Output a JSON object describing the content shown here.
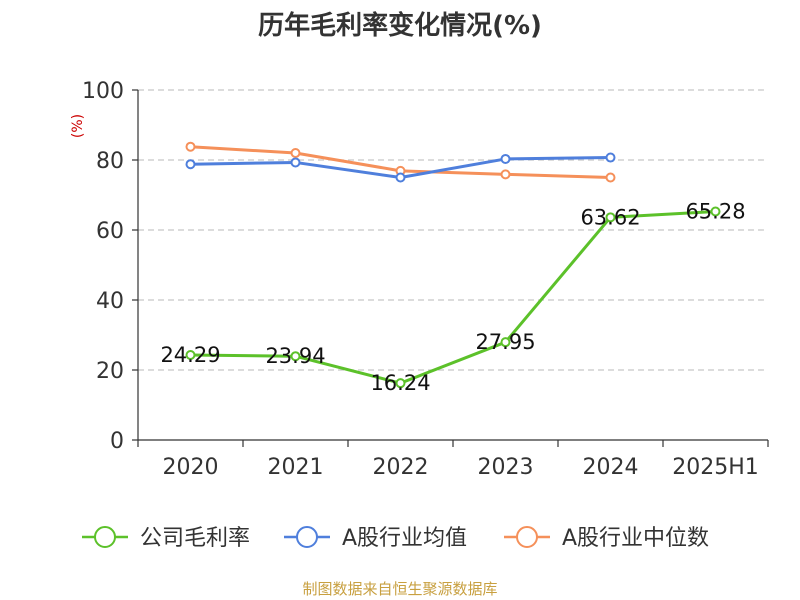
{
  "chart_data": {
    "type": "line",
    "title": "历年毛利率变化情况(%)",
    "ylabel": "(%)",
    "xlabel": "",
    "categories": [
      "2020",
      "2021",
      "2022",
      "2023",
      "2024",
      "2025H1"
    ],
    "ylim": [
      0,
      100
    ],
    "yticks": [
      0,
      20,
      40,
      60,
      80,
      100
    ],
    "grid": "horizontal-dashed",
    "legend_position": "bottom",
    "series": [
      {
        "name": "公司毛利率",
        "color": "#5cc12a",
        "values": [
          24.29,
          23.94,
          16.24,
          27.95,
          63.62,
          65.28
        ],
        "labels": [
          "24.29",
          "23.94",
          "16.24",
          "27.95",
          "63.62",
          "65.28"
        ]
      },
      {
        "name": "A股行业均值",
        "color": "#4f7fdc",
        "values": [
          78.8,
          79.3,
          75.0,
          80.3,
          80.7,
          null
        ]
      },
      {
        "name": "A股行业中位数",
        "color": "#f5905a",
        "values": [
          83.8,
          82.0,
          76.9,
          75.9,
          75.0,
          null
        ]
      }
    ]
  },
  "source": "制图数据来自恒生聚源数据库"
}
